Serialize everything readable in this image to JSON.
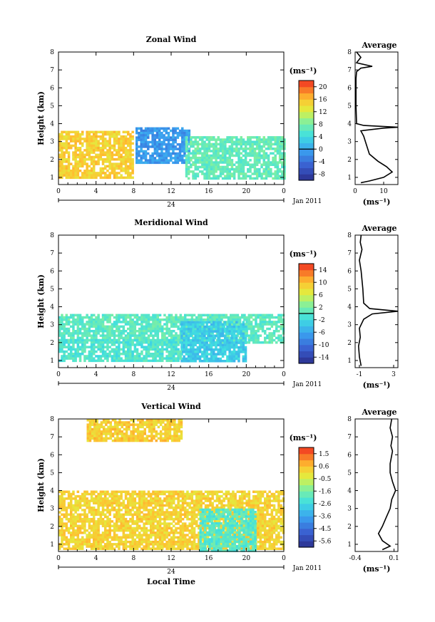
{
  "chart_data": [
    {
      "type": "heatmap",
      "title": "Zonal Wind",
      "ylabel": "Height (km)",
      "xlabel": "",
      "x_ticks": [
        "0",
        "4",
        "8",
        "12",
        "16",
        "20",
        "0"
      ],
      "y_ticks": [
        "1",
        "2",
        "3",
        "4",
        "5",
        "6",
        "7",
        "8"
      ],
      "xlim": [
        0,
        24
      ],
      "ylim": [
        0.6,
        8
      ],
      "date_label": "24",
      "date_suffix": "Jan 2011",
      "colorbar": {
        "unit": "(ms⁻¹)",
        "ticks": [
          "20",
          "16",
          "12",
          "8",
          "4",
          "0",
          "-4",
          "-8"
        ],
        "range": [
          -10,
          22
        ],
        "zero_line": 0
      },
      "regions": [
        {
          "name": "easterly-early",
          "x": [
            0,
            8
          ],
          "y": [
            1.0,
            3.6
          ],
          "value": 15
        },
        {
          "name": "westerly-core",
          "x": [
            8.2,
            14
          ],
          "y": [
            1.8,
            3.8
          ],
          "value": -1
        },
        {
          "name": "weak-afternoon",
          "x": [
            13.5,
            24
          ],
          "y": [
            1.0,
            3.3
          ],
          "value": 7
        }
      ],
      "profile": {
        "title": "Average",
        "xlabel": "(ms⁻¹)",
        "x_ticks": [
          "0",
          "10"
        ],
        "xlim": [
          0,
          15
        ],
        "points": [
          [
            2,
            0.7
          ],
          [
            5,
            0.8
          ],
          [
            10,
            1.0
          ],
          [
            13,
            1.3
          ],
          [
            11,
            1.6
          ],
          [
            8,
            1.9
          ],
          [
            5,
            2.3
          ],
          [
            4,
            2.8
          ],
          [
            3,
            3.3
          ],
          [
            2,
            3.6
          ],
          [
            10,
            3.75
          ],
          [
            15,
            3.8
          ],
          [
            3,
            3.9
          ],
          [
            0.5,
            4.0
          ],
          [
            0.3,
            5.0
          ],
          [
            0.3,
            6.5
          ],
          [
            0.5,
            6.9
          ],
          [
            2,
            7.1
          ],
          [
            6,
            7.2
          ],
          [
            0.5,
            7.4
          ],
          [
            2,
            7.7
          ],
          [
            0.5,
            8.0
          ]
        ]
      }
    },
    {
      "type": "heatmap",
      "title": "Meridional Wind",
      "ylabel": "Height (km)",
      "xlabel": "",
      "x_ticks": [
        "0",
        "4",
        "8",
        "12",
        "16",
        "20",
        "0"
      ],
      "y_ticks": [
        "1",
        "2",
        "3",
        "4",
        "5",
        "6",
        "7",
        "8"
      ],
      "xlim": [
        0,
        24
      ],
      "ylim": [
        0.6,
        8
      ],
      "date_label": "24",
      "date_suffix": "Jan 2011",
      "colorbar": {
        "unit": "(ms⁻¹)",
        "ticks": [
          "14",
          "10",
          "6",
          "2",
          "-2",
          "-6",
          "-10",
          "-14"
        ],
        "range": [
          -16,
          16
        ],
        "zero_line": 0
      },
      "regions": [
        {
          "name": "northerly-band",
          "x": [
            0,
            24
          ],
          "y": [
            2.0,
            3.6
          ],
          "value": 0.5
        },
        {
          "name": "southerly-afternoon",
          "x": [
            13,
            20
          ],
          "y": [
            1.0,
            3.2
          ],
          "value": -3
        },
        {
          "name": "low-level",
          "x": [
            0,
            13
          ],
          "y": [
            1.0,
            2.2
          ],
          "value": -0.5
        }
      ],
      "profile": {
        "title": "Average",
        "xlabel": "(ms⁻¹)",
        "x_ticks": [
          "-1",
          "3"
        ],
        "xlim": [
          -1.5,
          3.5
        ],
        "points": [
          [
            -0.8,
            0.7
          ],
          [
            -1.0,
            1.2
          ],
          [
            -1.1,
            1.8
          ],
          [
            -0.9,
            2.3
          ],
          [
            -1.0,
            2.8
          ],
          [
            -0.5,
            3.3
          ],
          [
            0.5,
            3.6
          ],
          [
            3.5,
            3.75
          ],
          [
            0.2,
            3.9
          ],
          [
            -0.5,
            4.2
          ],
          [
            -0.6,
            5.0
          ],
          [
            -0.8,
            6.0
          ],
          [
            -1.0,
            6.6
          ],
          [
            -0.7,
            7.2
          ],
          [
            -0.9,
            7.6
          ],
          [
            -0.8,
            8.0
          ]
        ]
      }
    },
    {
      "type": "heatmap",
      "title": "Vertical Wind",
      "ylabel": "Height (km)",
      "xlabel": "Local Time",
      "x_ticks": [
        "0",
        "4",
        "8",
        "12",
        "16",
        "20",
        "0"
      ],
      "y_ticks": [
        "1",
        "2",
        "3",
        "4",
        "5",
        "6",
        "7",
        "8"
      ],
      "xlim": [
        0,
        24
      ],
      "ylim": [
        0.6,
        8
      ],
      "date_label": "24",
      "date_suffix": "Jan 2011",
      "colorbar": {
        "unit": "(ms⁻¹)",
        "ticks": [
          "1.5",
          "0.6",
          "-0.5",
          "-1.6",
          "-2.6",
          "-3.6",
          "-4.5",
          "-5.6"
        ],
        "range": [
          -6,
          2
        ],
        "zero_line": null
      },
      "regions": [
        {
          "name": "boundary-layer",
          "x": [
            0,
            24
          ],
          "y": [
            0.7,
            4.0
          ],
          "value": 0.2
        },
        {
          "name": "afternoon-downdrafts",
          "x": [
            15,
            21
          ],
          "y": [
            0.7,
            3.0
          ],
          "value": -2
        },
        {
          "name": "upper-sparse",
          "x": [
            3,
            13
          ],
          "y": [
            6.8,
            8.0
          ],
          "value": 0.3
        }
      ],
      "profile": {
        "title": "Average",
        "xlabel": "(ms⁻¹)",
        "x_ticks": [
          "-0.4",
          "0.1"
        ],
        "xlim": [
          -0.4,
          0.15
        ],
        "points": [
          [
            -0.05,
            0.7
          ],
          [
            0.05,
            0.9
          ],
          [
            -0.05,
            1.2
          ],
          [
            -0.1,
            1.6
          ],
          [
            -0.05,
            2.0
          ],
          [
            0.0,
            2.5
          ],
          [
            0.05,
            3.0
          ],
          [
            0.07,
            3.5
          ],
          [
            0.12,
            4.0
          ],
          [
            0.08,
            4.5
          ],
          [
            0.05,
            5.0
          ],
          [
            0.05,
            5.5
          ],
          [
            0.08,
            6.2
          ],
          [
            0.06,
            6.5
          ],
          [
            0.08,
            7.0
          ],
          [
            0.05,
            7.5
          ],
          [
            0.07,
            8.0
          ]
        ]
      }
    }
  ]
}
